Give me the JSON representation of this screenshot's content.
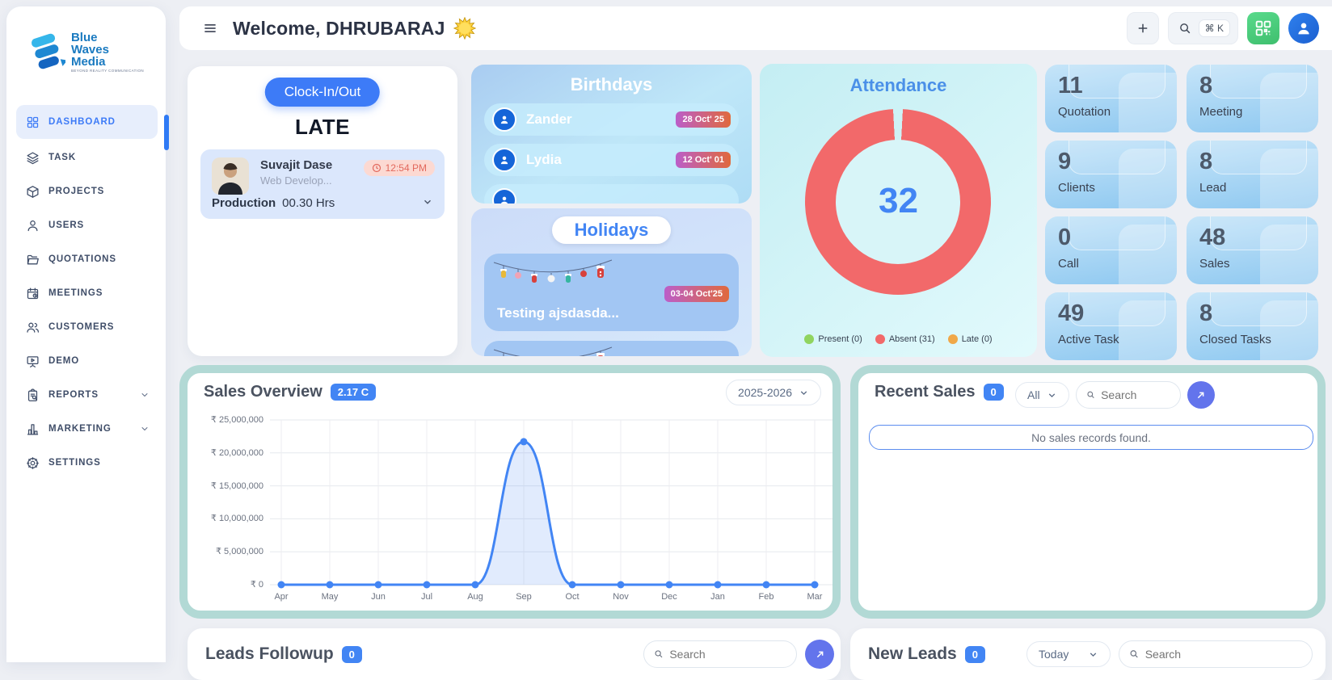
{
  "colors": {
    "accent": "#4285f4",
    "primary_button": "#3d7bf7",
    "teal_border": "#b2d9d5",
    "donut_ring": "#f2696a",
    "present_green": "#90d45f",
    "absent_red": "#f2696a",
    "late_orange": "#f0a848",
    "badge_gradient_start": "#bb5ec9",
    "badge_gradient_end": "#e0693c",
    "qr_green": "#46c878",
    "circle_button": "#6374ec"
  },
  "sidebar": {
    "logo": {
      "line1": "Blue",
      "line2": "Waves",
      "line3": "Media",
      "tagline": "BEYOND REALITY COMMUNICATION"
    },
    "items": [
      {
        "id": "dashboard",
        "label": "DASHBOARD",
        "icon": "grid",
        "active": true,
        "chevron": false
      },
      {
        "id": "task",
        "label": "TASK",
        "icon": "layers",
        "active": false,
        "chevron": false
      },
      {
        "id": "projects",
        "label": "PROJECTS",
        "icon": "cube",
        "active": false,
        "chevron": false
      },
      {
        "id": "users",
        "label": "USERS",
        "icon": "user",
        "active": false,
        "chevron": false
      },
      {
        "id": "quotations",
        "label": "QUOTATIONS",
        "icon": "folder",
        "active": false,
        "chevron": false
      },
      {
        "id": "meetings",
        "label": "MEETINGS",
        "icon": "calendar",
        "active": false,
        "chevron": false
      },
      {
        "id": "customers",
        "label": "CUSTOMERS",
        "icon": "people",
        "active": false,
        "chevron": false
      },
      {
        "id": "demo",
        "label": "DEMO",
        "icon": "presentation",
        "active": false,
        "chevron": false
      },
      {
        "id": "reports",
        "label": "REPORTS",
        "icon": "clipboard",
        "active": false,
        "chevron": true
      },
      {
        "id": "marketing",
        "label": "MARKETING",
        "icon": "chart",
        "active": false,
        "chevron": true
      },
      {
        "id": "settings",
        "label": "SETTINGS",
        "icon": "gear",
        "active": false,
        "chevron": false
      }
    ]
  },
  "header": {
    "welcome": "Welcome, DHRUBARAJ",
    "shortcut": "⌘ K"
  },
  "clock_card": {
    "button": "Clock-In/Out",
    "status": "LATE",
    "employee": {
      "name": "Suvajit Dase",
      "role": "Web Develop...",
      "time": "12:54 PM",
      "project": "Production",
      "hours": "00.30 Hrs"
    }
  },
  "birthdays": {
    "title": "Birthdays",
    "items": [
      {
        "name": "Zander",
        "date": "28 Oct' 25"
      },
      {
        "name": "Lydia",
        "date": "12 Oct' 01"
      },
      {
        "name": "",
        "date": ""
      }
    ]
  },
  "holidays": {
    "title": "Holidays",
    "items": [
      {
        "name": "Testing ajsdasda...",
        "date": "03-04 Oct'25"
      },
      {
        "name": "",
        "date": ""
      }
    ]
  },
  "attendance": {
    "title": "Attendance",
    "total": "32",
    "legend": [
      {
        "label": "Present (0)",
        "color": "#90d45f"
      },
      {
        "label": "Absent (31)",
        "color": "#f2696a"
      },
      {
        "label": "Late (0)",
        "color": "#f0a848"
      }
    ]
  },
  "stats": [
    {
      "value": "11",
      "label": "Quotation"
    },
    {
      "value": "8",
      "label": "Meeting"
    },
    {
      "value": "9",
      "label": "Clients"
    },
    {
      "value": "8",
      "label": "Lead"
    },
    {
      "value": "0",
      "label": "Call"
    },
    {
      "value": "48",
      "label": "Sales"
    },
    {
      "value": "49",
      "label": "Active Task"
    },
    {
      "value": "8",
      "label": "Closed Tasks"
    }
  ],
  "sales_overview": {
    "title": "Sales Overview",
    "badge": "2.17 C",
    "year": "2025-2026"
  },
  "chart_data": {
    "type": "line",
    "title": "Sales Overview",
    "x": [
      "Apr",
      "May",
      "Jun",
      "Jul",
      "Aug",
      "Sep",
      "Oct",
      "Nov",
      "Dec",
      "Jan",
      "Feb",
      "Mar"
    ],
    "series": [
      {
        "name": "Sales",
        "values": [
          0,
          0,
          0,
          0,
          0,
          21700000,
          0,
          0,
          0,
          0,
          0,
          0
        ]
      }
    ],
    "yticks": [
      "₹ 25,000,000",
      "₹ 20,000,000",
      "₹ 15,000,000",
      "₹ 10,000,000",
      "₹ 5,000,000",
      "₹ 0"
    ],
    "ylim": [
      0,
      25000000
    ],
    "grid": true,
    "legend_position": "none",
    "line_color": "#4285f4",
    "fill_color": "rgba(66,133,244,0.16)"
  },
  "recent_sales": {
    "title": "Recent Sales",
    "badge": "0",
    "filter": "All",
    "search_placeholder": "Search",
    "empty": "No sales records found."
  },
  "leads_followup": {
    "title": "Leads Followup",
    "badge": "0",
    "search_placeholder": "Search"
  },
  "new_leads": {
    "title": "New Leads",
    "badge": "0",
    "filter": "Today",
    "search_placeholder": "Search"
  }
}
